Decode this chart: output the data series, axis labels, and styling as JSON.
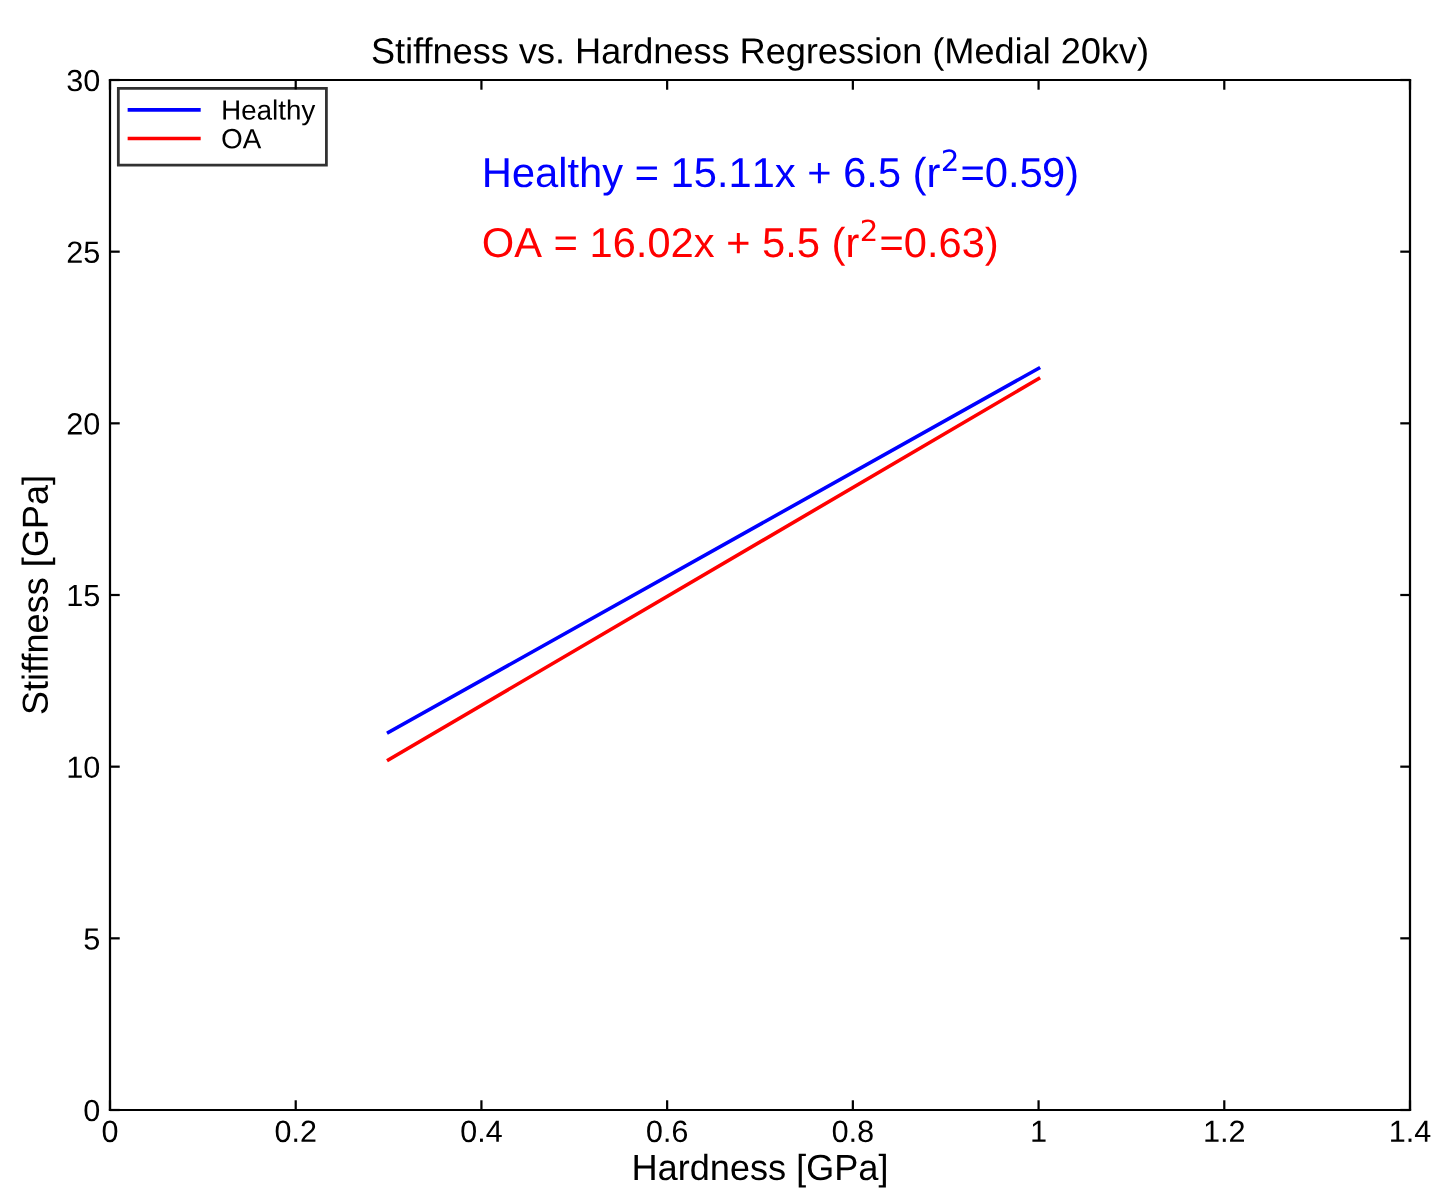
{
  "chart_data": {
    "type": "line",
    "title": "Stiffness vs. Hardness Regression (Medial 20kv)",
    "xlabel": "Hardness [GPa]",
    "ylabel": "Stiffness [GPa]",
    "x": [
      0.3,
      1.0
    ],
    "series": [
      {
        "name": "Healthy",
        "color": "#0000ff",
        "values": [
          11.0,
          21.6
        ]
      },
      {
        "name": "OA",
        "color": "#ff0000",
        "values": [
          10.2,
          21.3
        ]
      }
    ],
    "annotations": [
      "Healthy = 15.11x + 6.5 (r$^{2}$=0.59)",
      "OA = 16.02x + 5.5 (r$^{2}$=0.63)"
    ],
    "xlim": [
      0,
      1.4
    ],
    "xticks": [
      0,
      0.2,
      0.4,
      0.6,
      0.8,
      1,
      1.2,
      1.4
    ],
    "ylim": [
      0,
      30
    ],
    "yticks": [
      0,
      5,
      10,
      15,
      20,
      25,
      30
    ],
    "grid": false,
    "legend": "top left",
    "marker": "none",
    "line_style": "solid"
  }
}
